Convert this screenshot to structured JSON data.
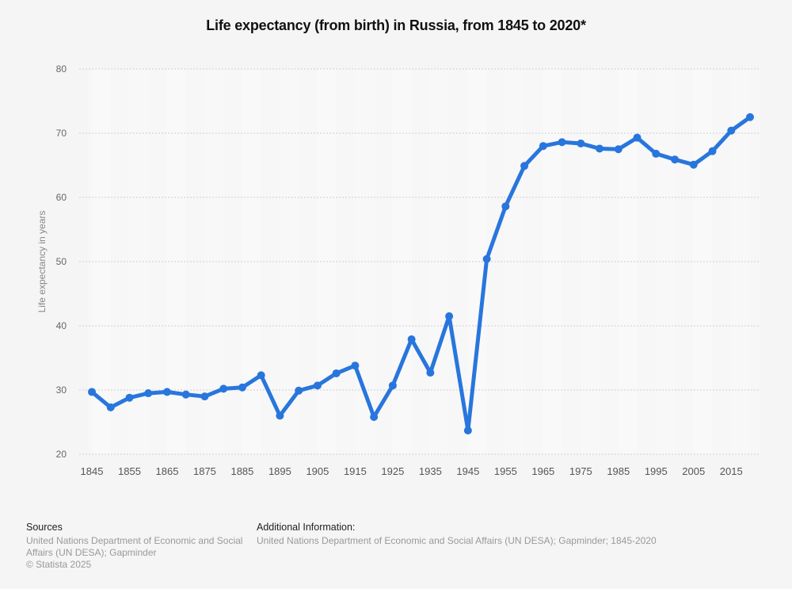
{
  "chart_data": {
    "type": "line",
    "title": "Life expectancy (from birth) in Russia, from 1845 to 2020*",
    "xlabel": "",
    "ylabel": "Life expectancy in years",
    "ylim": [
      20,
      80
    ],
    "yticks": [
      20,
      30,
      40,
      50,
      60,
      70,
      80
    ],
    "xtick_labels": [
      "1845",
      "1855",
      "1865",
      "1875",
      "1885",
      "1895",
      "1905",
      "1915",
      "1925",
      "1935",
      "1945",
      "1955",
      "1965",
      "1975",
      "1985",
      "1995",
      "2005",
      "2015"
    ],
    "grid": true,
    "line_color": "#2876dd",
    "series": [
      {
        "name": "Life expectancy",
        "x": [
          1845,
          1850,
          1855,
          1860,
          1865,
          1870,
          1875,
          1880,
          1885,
          1890,
          1895,
          1900,
          1905,
          1910,
          1915,
          1920,
          1925,
          1930,
          1935,
          1940,
          1945,
          1950,
          1955,
          1960,
          1965,
          1970,
          1975,
          1980,
          1985,
          1990,
          1995,
          2000,
          2005,
          2010,
          2015,
          2020
        ],
        "values": [
          29.7,
          27.3,
          28.8,
          29.5,
          29.7,
          29.3,
          29.0,
          30.2,
          30.4,
          32.3,
          26.0,
          29.9,
          30.7,
          32.6,
          33.8,
          25.8,
          30.7,
          37.9,
          32.7,
          41.5,
          23.7,
          50.4,
          58.6,
          64.9,
          68.0,
          68.6,
          68.4,
          67.6,
          67.5,
          69.3,
          66.8,
          65.9,
          65.1,
          67.2,
          70.4,
          72.5
        ]
      }
    ]
  },
  "footer": {
    "sources_heading": "Sources",
    "sources_text": "United Nations Department of Economic and Social Affairs (UN DESA); Gapminder",
    "copyright": "© Statista 2025",
    "additional_heading": "Additional Information:",
    "additional_text": "United Nations Department of Economic and Social Affairs (UN DESA); Gapminder; 1845-2020"
  }
}
